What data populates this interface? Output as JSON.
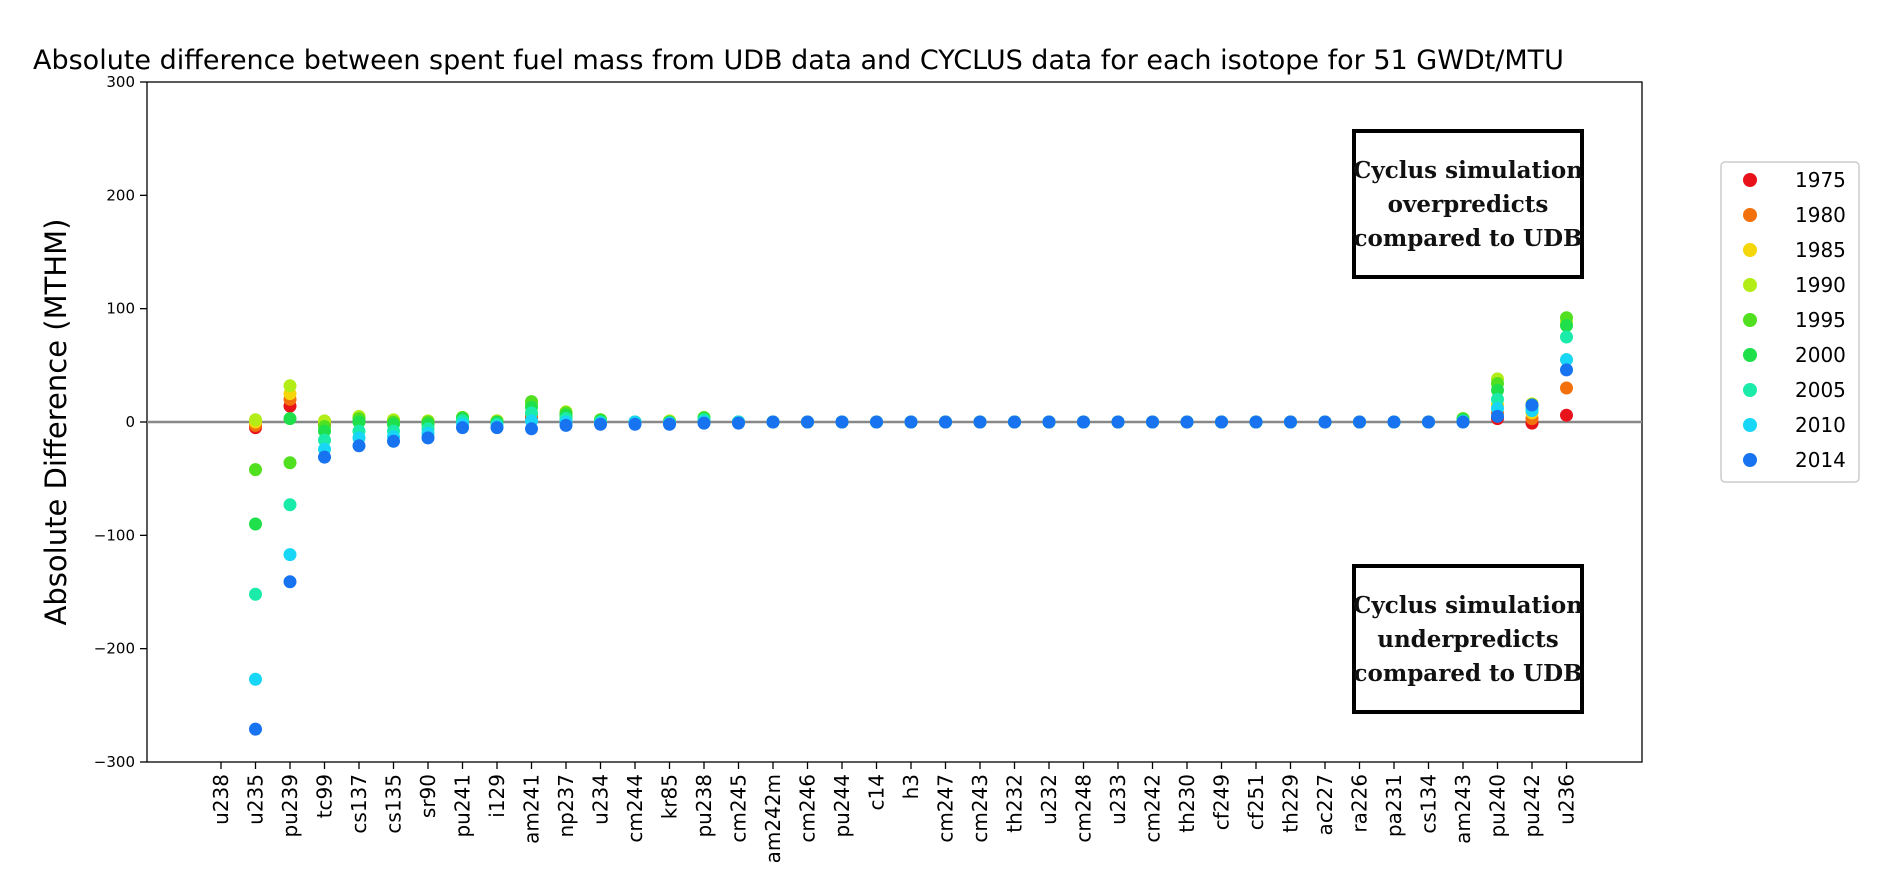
{
  "chart_data": {
    "type": "scatter",
    "title": "Absolute difference between spent fuel mass from UDB data and CYCLUS data for each isotope for 51 GWDt/MTU",
    "xlabel": "",
    "ylabel": "Absolute Difference (MTHM)",
    "ylim": [
      -300,
      300
    ],
    "yticks": [
      "300",
      "200",
      "100",
      "0",
      "−100",
      "−200",
      "−300"
    ],
    "grid": false,
    "zero_line": true,
    "legend_position": "outside-right",
    "categories": [
      "u238",
      "u235",
      "pu239",
      "tc99",
      "cs137",
      "cs135",
      "sr90",
      "pu241",
      "i129",
      "am241",
      "np237",
      "u234",
      "cm244",
      "kr85",
      "pu238",
      "cm245",
      "am242m",
      "cm246",
      "pu244",
      "c14",
      "h3",
      "cm247",
      "cm243",
      "th232",
      "u232",
      "cm248",
      "u233",
      "cm242",
      "th230",
      "cf249",
      "cf251",
      "th229",
      "ac227",
      "ra226",
      "pa231",
      "cs134",
      "am243",
      "pu240",
      "pu242",
      "u236"
    ],
    "series": [
      {
        "name": "1975",
        "color": "#e8121b",
        "values": [
          null,
          -5,
          14,
          -2,
          3,
          0,
          -1,
          2,
          0,
          4,
          3,
          0,
          0,
          0,
          1,
          0,
          0,
          0,
          0,
          0,
          0,
          0,
          0,
          0,
          0,
          0,
          0,
          0,
          0,
          0,
          0,
          0,
          0,
          0,
          0,
          0,
          1,
          3,
          -1,
          6
        ]
      },
      {
        "name": "1980",
        "color": "#f2710c",
        "values": [
          null,
          -3,
          20,
          -1,
          4,
          1,
          0,
          3,
          1,
          6,
          5,
          1,
          0,
          0,
          2,
          0,
          0,
          0,
          0,
          0,
          0,
          0,
          0,
          0,
          0,
          0,
          0,
          0,
          0,
          0,
          0,
          0,
          0,
          0,
          0,
          0,
          1,
          8,
          3,
          30
        ]
      },
      {
        "name": "1985",
        "color": "#f5d60a",
        "values": [
          null,
          0,
          25,
          0,
          4,
          1,
          0,
          3,
          1,
          8,
          6,
          1,
          0,
          0,
          2,
          0,
          0,
          0,
          0,
          0,
          0,
          0,
          0,
          0,
          0,
          0,
          0,
          0,
          0,
          0,
          0,
          0,
          0,
          0,
          0,
          0,
          2,
          15,
          8,
          55
        ]
      },
      {
        "name": "1990",
        "color": "#b3ed18",
        "values": [
          null,
          2,
          32,
          1,
          5,
          2,
          1,
          4,
          1,
          15,
          9,
          2,
          0,
          1,
          3,
          0,
          0,
          0,
          0,
          0,
          0,
          0,
          0,
          0,
          0,
          0,
          0,
          0,
          0,
          0,
          0,
          0,
          0,
          0,
          0,
          0,
          3,
          38,
          16,
          88
        ]
      },
      {
        "name": "1995",
        "color": "#51e01f",
        "values": [
          null,
          -42,
          -36,
          -4,
          3,
          0,
          0,
          4,
          0,
          18,
          8,
          2,
          0,
          0,
          4,
          0,
          0,
          0,
          0,
          0,
          0,
          0,
          0,
          0,
          0,
          0,
          0,
          0,
          0,
          0,
          0,
          0,
          0,
          0,
          0,
          0,
          3,
          34,
          15,
          92
        ]
      },
      {
        "name": "2000",
        "color": "#1fe04a",
        "values": [
          null,
          -90,
          3,
          -8,
          0,
          -2,
          -2,
          3,
          0,
          13,
          6,
          1,
          0,
          0,
          3,
          0,
          0,
          0,
          0,
          0,
          0,
          0,
          0,
          0,
          0,
          0,
          0,
          0,
          0,
          0,
          0,
          0,
          0,
          0,
          0,
          0,
          2,
          28,
          14,
          85
        ]
      },
      {
        "name": "2005",
        "color": "#1aeba8",
        "values": [
          null,
          -152,
          -73,
          -16,
          -8,
          -8,
          -6,
          1,
          -2,
          8,
          3,
          0,
          0,
          -1,
          2,
          0,
          0,
          0,
          0,
          0,
          0,
          0,
          0,
          0,
          0,
          0,
          0,
          0,
          0,
          0,
          0,
          0,
          0,
          0,
          0,
          0,
          1,
          20,
          12,
          75
        ]
      },
      {
        "name": "2010",
        "color": "#18d6f5",
        "values": [
          null,
          -227,
          -117,
          -24,
          -14,
          -13,
          -10,
          -2,
          -4,
          1,
          0,
          -1,
          0,
          -1,
          0,
          0,
          0,
          0,
          0,
          0,
          0,
          0,
          0,
          0,
          0,
          0,
          0,
          0,
          0,
          0,
          0,
          0,
          0,
          0,
          0,
          0,
          0,
          12,
          10,
          55
        ]
      },
      {
        "name": "2014",
        "color": "#1873f0",
        "values": [
          null,
          -271,
          -141,
          -31,
          -21,
          -17,
          -14,
          -5,
          -5,
          -6,
          -3,
          -2,
          -2,
          -2,
          -1,
          -1,
          0,
          0,
          0,
          0,
          0,
          0,
          0,
          0,
          0,
          0,
          0,
          0,
          0,
          0,
          0,
          0,
          0,
          0,
          0,
          0,
          0,
          5,
          15,
          46
        ]
      }
    ],
    "annotations": [
      {
        "lines": [
          "Cyclus simulation",
          "overpredicts",
          "compared to UDB"
        ]
      },
      {
        "lines": [
          "Cyclus simulation",
          "underpredicts",
          "compared to UDB"
        ]
      }
    ]
  }
}
